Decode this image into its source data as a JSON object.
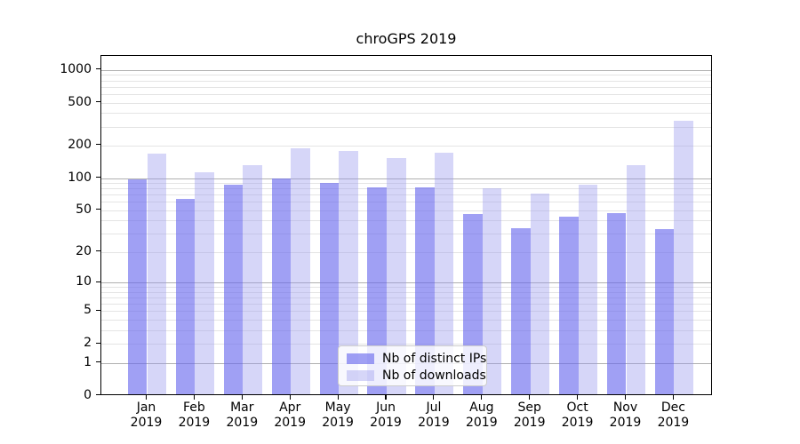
{
  "chart_data": {
    "type": "bar",
    "title": "chroGPS 2019",
    "categories": [
      "Jan",
      "Feb",
      "Mar",
      "Apr",
      "May",
      "Jun",
      "Jul",
      "Aug",
      "Sep",
      "Oct",
      "Nov",
      "Dec"
    ],
    "category_year": "2019",
    "series": [
      {
        "name": "Nb of distinct IPs",
        "color": "#6666ee",
        "opacity": 0.62,
        "values": [
          95,
          62,
          85,
          97,
          87,
          80,
          80,
          45,
          33,
          42,
          46,
          32
        ]
      },
      {
        "name": "Nb of downloads",
        "color": "#9999ee",
        "opacity": 0.4,
        "values": [
          165,
          110,
          128,
          185,
          172,
          150,
          168,
          78,
          70,
          85,
          127,
          330
        ]
      }
    ],
    "xlabel": "",
    "ylabel": "",
    "yscale": "log1p",
    "ylim": [
      0,
      1400
    ],
    "yticks": [
      0,
      1,
      2,
      5,
      10,
      20,
      50,
      100,
      200,
      500,
      1000
    ],
    "grid": {
      "major_at": [
        1,
        10,
        100,
        1000
      ],
      "minor_at": [
        2,
        3,
        4,
        5,
        6,
        7,
        8,
        9,
        20,
        30,
        40,
        50,
        60,
        70,
        80,
        90,
        200,
        300,
        400,
        500,
        600,
        700,
        800,
        900
      ]
    },
    "legend": {
      "position": "lower center",
      "entries": [
        "Nb of distinct IPs",
        "Nb of downloads"
      ]
    },
    "colors": {
      "distinct_ips_on_white": "#a1a1f5",
      "downloads_on_white": "#d6d6f8",
      "grid_major": "#b0b0b0",
      "grid_minor": "#e4e4e4",
      "spine": "#000000"
    }
  }
}
